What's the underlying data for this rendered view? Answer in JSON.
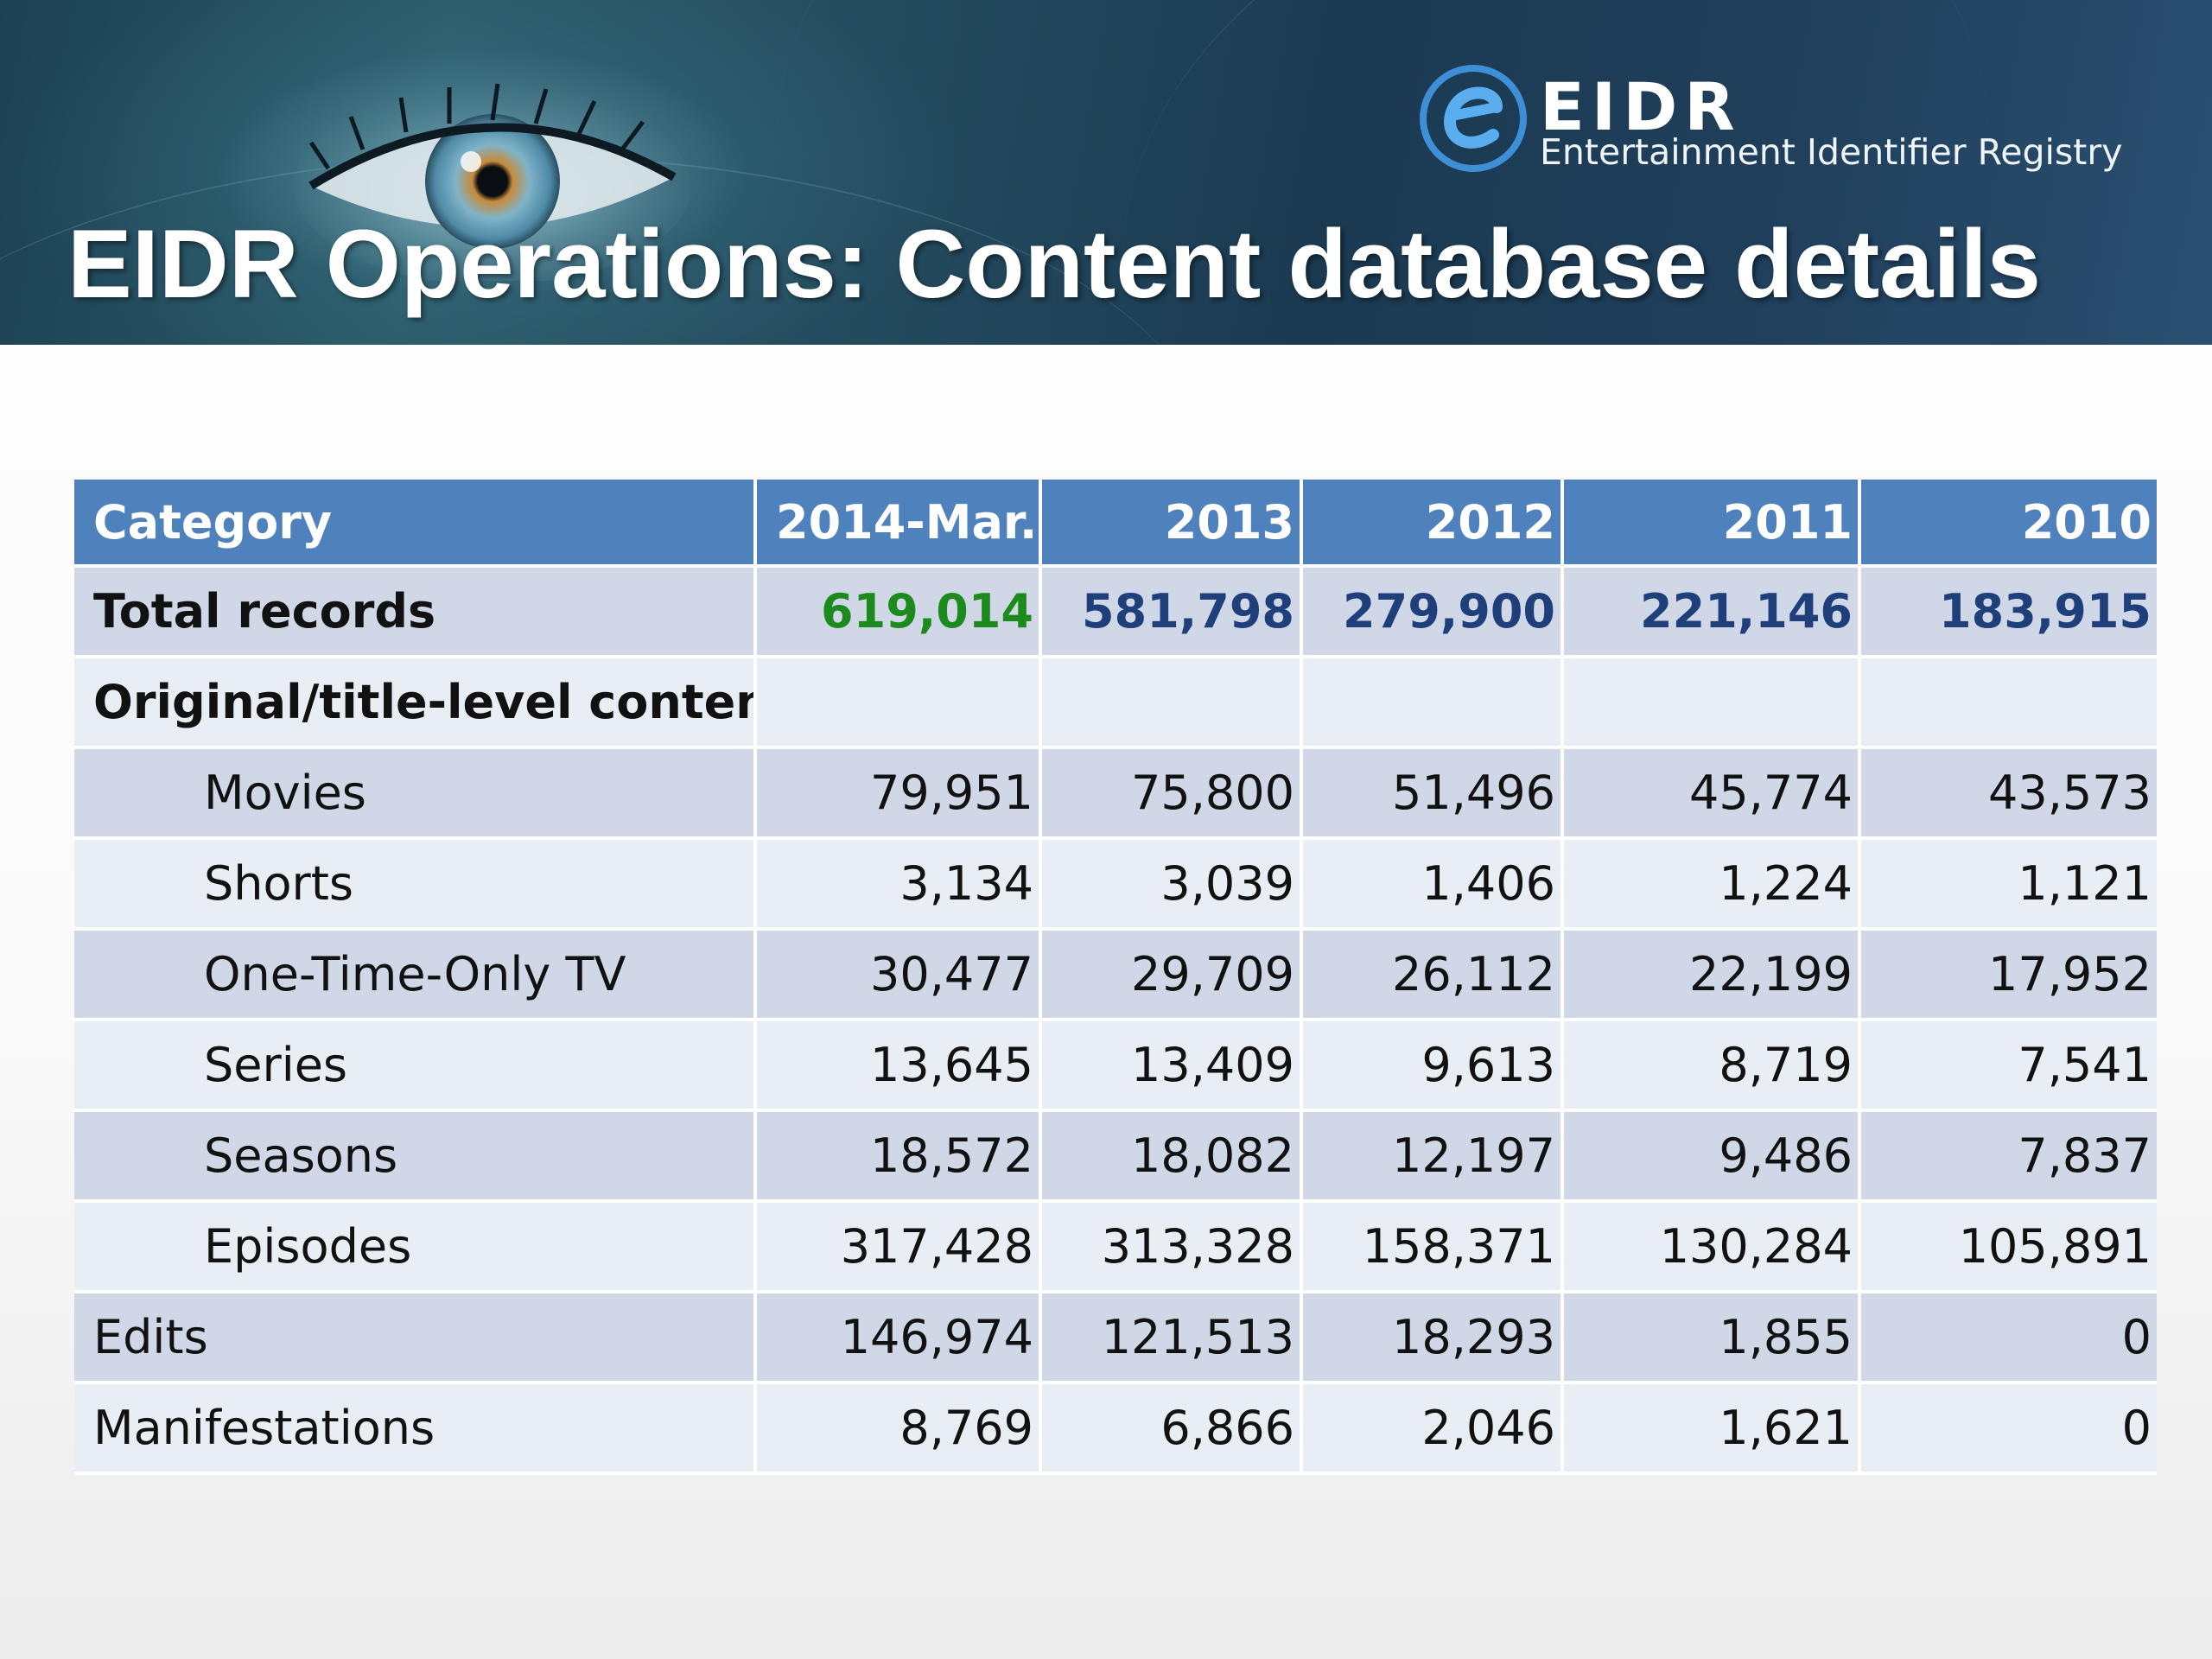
{
  "logo": {
    "name": "EIDR",
    "tagline": "Entertainment Identifier Registry"
  },
  "title": "EIDR Operations: Content database details",
  "colors": {
    "header_bg": "#4f81bd",
    "row_dark": "#d0d8e8",
    "row_light": "#e9edf4",
    "highlight_green": "#1d8a1d",
    "highlight_blue": "#1f3f7a"
  },
  "table": {
    "headers": [
      "Category",
      "2014-Mar.",
      "2013",
      "2012",
      "2011",
      "2010"
    ],
    "rows": [
      {
        "label": "Total records",
        "values": [
          "619,014",
          "581,798",
          "279,900",
          "221,146",
          "183,915"
        ]
      },
      {
        "label": "Original/title-level content:",
        "values": [
          "",
          "",
          "",
          "",
          ""
        ]
      },
      {
        "label": "Movies",
        "values": [
          "79,951",
          "75,800",
          "51,496",
          "45,774",
          "43,573"
        ]
      },
      {
        "label": "Shorts",
        "values": [
          "3,134",
          "3,039",
          "1,406",
          "1,224",
          "1,121"
        ]
      },
      {
        "label": "One-Time-Only TV",
        "values": [
          "30,477",
          "29,709",
          "26,112",
          "22,199",
          "17,952"
        ]
      },
      {
        "label": "Series",
        "values": [
          "13,645",
          "13,409",
          "9,613",
          "8,719",
          "7,541"
        ]
      },
      {
        "label": "Seasons",
        "values": [
          "18,572",
          "18,082",
          "12,197",
          "9,486",
          "7,837"
        ]
      },
      {
        "label": "Episodes",
        "values": [
          "317,428",
          "313,328",
          "158,371",
          "130,284",
          "105,891"
        ]
      },
      {
        "label": "Edits",
        "values": [
          "146,974",
          "121,513",
          "18,293",
          "1,855",
          "0"
        ]
      },
      {
        "label": "Manifestations",
        "values": [
          "8,769",
          "6,866",
          "2,046",
          "1,621",
          "0"
        ]
      }
    ]
  }
}
